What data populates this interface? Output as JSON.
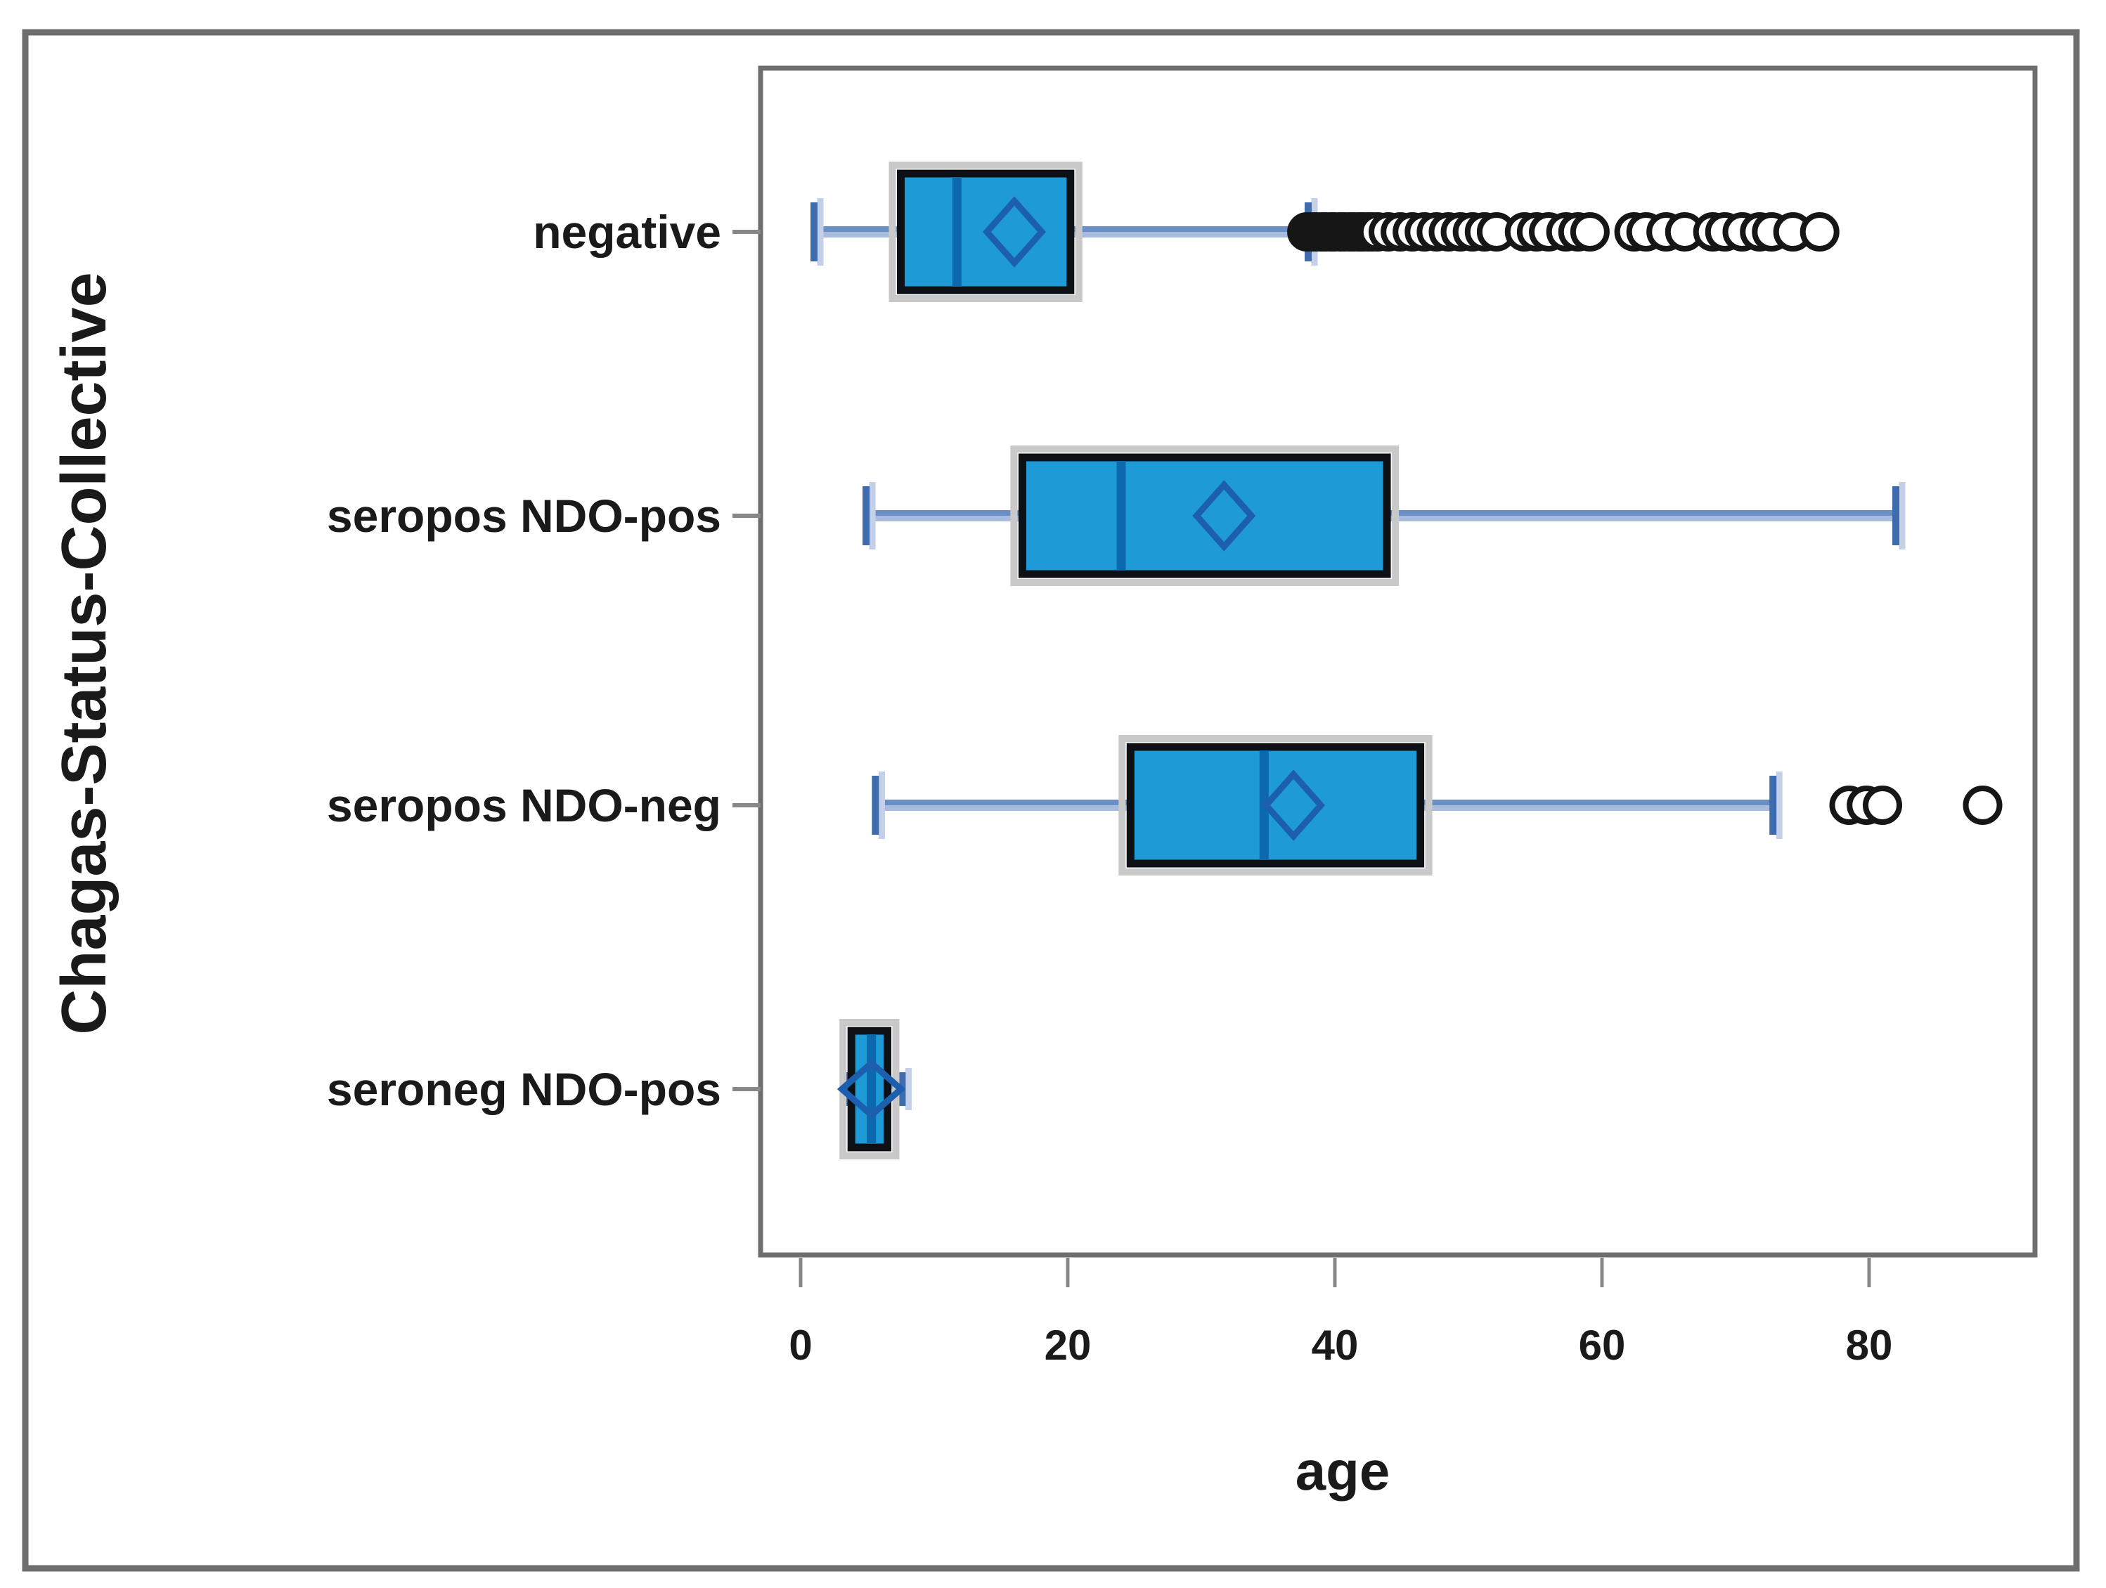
{
  "figure": {
    "background": "#ffffff",
    "frame_color": "#6e6e6e",
    "plot_border_color": "#6e6e6e"
  },
  "chart_data": {
    "type": "boxplot",
    "orientation": "horizontal",
    "title": "",
    "xlabel": "age",
    "ylabel": "Chagas-Status-Collective",
    "x_ticks": [
      0,
      20,
      40,
      60,
      80
    ],
    "xlim": [
      -3,
      92.5
    ],
    "grid": false,
    "legend": "none",
    "categories": [
      "negative",
      "seropos NDO-pos",
      "seropos NDO-neg",
      "seroneg NDO-pos"
    ],
    "boxes": [
      {
        "category": "negative",
        "whisker_low": 1,
        "q1": 7.5,
        "median": 11.7,
        "q3": 20.2,
        "whisker_high": 38,
        "mean": 16,
        "outliers": [
          37.9,
          38.3,
          38.6,
          39.0,
          39.3,
          39.7,
          40.0,
          40.4,
          40.7,
          41.1,
          41.4,
          41.8,
          42.1,
          42.5,
          42.8,
          43.2,
          44.0,
          44.9,
          45.8,
          46.7,
          47.6,
          48.5,
          49.4,
          50.3,
          51.2,
          52.1,
          54.2,
          55.1,
          56.0,
          57.3,
          58.2,
          59.1,
          62.4,
          63.3,
          64.8,
          66.2,
          68.3,
          69.2,
          70.5,
          71.8,
          72.7,
          74.3,
          76.3
        ]
      },
      {
        "category": "seropos NDO-pos",
        "whisker_low": 4.9,
        "q1": 16.6,
        "median": 24.0,
        "q3": 43.9,
        "whisker_high": 82.0,
        "mean": 31.7,
        "outliers": []
      },
      {
        "category": "seropos NDO-neg",
        "whisker_low": 5.6,
        "q1": 24.7,
        "median": 34.7,
        "q3": 46.4,
        "whisker_high": 72.8,
        "mean": 36.9,
        "outliers": [
          78.5,
          79.8,
          81.0,
          88.5
        ]
      },
      {
        "category": "seroneg NDO-pos",
        "whisker_low": 3.4,
        "q1": 3.8,
        "median": 5.3,
        "q3": 6.5,
        "whisker_high": 7.6,
        "mean": 5.3,
        "outliers": []
      }
    ],
    "colors": {
      "box_fill": "#1e9bd7",
      "box_border": "#0d1116",
      "box_outer_glow": "#c9c9c9",
      "median_line": "#0d68ad",
      "whisker_dark": "#6b8ec5",
      "whisker_light": "#a7bbde",
      "whisker_cap": "#3e6cad",
      "cap_halo": "#c3d0e8",
      "mean_diamond": "#1c5fae",
      "outlier_stroke": "#161616",
      "outlier_fill": "#ffffff",
      "tick_color": "#888888",
      "text_color": "#1a1a1a"
    }
  }
}
